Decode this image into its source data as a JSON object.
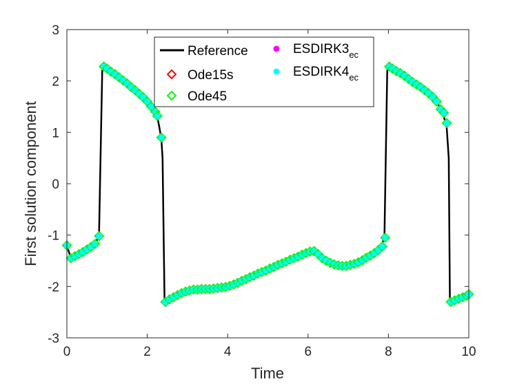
{
  "chart_data": {
    "type": "line",
    "title": "",
    "xlabel": "Time",
    "ylabel": "First solution component",
    "xlim": [
      0,
      10
    ],
    "ylim": [
      -3,
      3
    ],
    "xticks": [
      "0",
      "2",
      "4",
      "6",
      "8",
      "10"
    ],
    "yticks": [
      "-3",
      "-2",
      "-1",
      "0",
      "1",
      "2",
      "3"
    ],
    "grid": false,
    "legend_position": "top-center",
    "series": [
      {
        "name": "Reference",
        "style": "line",
        "color": "#000000",
        "points": [
          [
            0,
            -1.2
          ],
          [
            0.1,
            -1.45
          ],
          [
            0.3,
            -1.37
          ],
          [
            0.5,
            -1.28
          ],
          [
            0.7,
            -1.17
          ],
          [
            0.8,
            -1.02
          ],
          [
            0.88,
            2.2
          ],
          [
            0.92,
            2.28
          ],
          [
            1.2,
            2.13
          ],
          [
            1.5,
            1.95
          ],
          [
            1.8,
            1.75
          ],
          [
            2.0,
            1.6
          ],
          [
            2.1,
            1.5
          ],
          [
            2.2,
            1.4
          ],
          [
            2.25,
            1.3
          ],
          [
            2.3,
            1.1
          ],
          [
            2.35,
            0.88
          ],
          [
            2.38,
            0.5
          ],
          [
            2.43,
            -2.3
          ],
          [
            2.6,
            -2.22
          ],
          [
            2.8,
            -2.15
          ],
          [
            3.0,
            -2.08
          ],
          [
            3.3,
            -2.05
          ],
          [
            3.6,
            -2.05
          ],
          [
            4.0,
            -2.0
          ],
          [
            4.3,
            -1.92
          ],
          [
            4.6,
            -1.8
          ],
          [
            5.0,
            -1.67
          ],
          [
            5.5,
            -1.5
          ],
          [
            5.8,
            -1.4
          ],
          [
            6.1,
            -1.3
          ],
          [
            6.2,
            -1.33
          ],
          [
            6.4,
            -1.48
          ],
          [
            6.7,
            -1.58
          ],
          [
            7.0,
            -1.6
          ],
          [
            7.3,
            -1.53
          ],
          [
            7.6,
            -1.37
          ],
          [
            7.8,
            -1.25
          ],
          [
            7.9,
            -1.05
          ],
          [
            7.97,
            2.2
          ],
          [
            8.02,
            2.28
          ],
          [
            8.3,
            2.15
          ],
          [
            8.6,
            1.98
          ],
          [
            8.9,
            1.82
          ],
          [
            9.2,
            1.6
          ],
          [
            9.3,
            1.45
          ],
          [
            9.35,
            1.37
          ],
          [
            9.4,
            1.25
          ],
          [
            9.45,
            1.1
          ],
          [
            9.5,
            0.5
          ],
          [
            9.53,
            -2.3
          ],
          [
            9.7,
            -2.25
          ],
          [
            9.9,
            -2.2
          ],
          [
            10.0,
            -2.15
          ]
        ]
      },
      {
        "name": "Ode15s",
        "style": "marker",
        "marker": "diamond-open",
        "color": "#ff0000"
      },
      {
        "name": "Ode45",
        "style": "marker",
        "marker": "diamond-open",
        "color": "#00ff00"
      },
      {
        "name": "ESDIRK3",
        "subscript": "ec",
        "style": "marker",
        "marker": "circle-filled",
        "color": "#ff00ff"
      },
      {
        "name": "ESDIRK4",
        "subscript": "ec",
        "style": "marker",
        "marker": "circle-filled",
        "color": "#00ffff",
        "points": [
          [
            0.0,
            -1.2
          ],
          [
            0.1,
            -1.45
          ],
          [
            0.2,
            -1.41
          ],
          [
            0.3,
            -1.37
          ],
          [
            0.4,
            -1.33
          ],
          [
            0.5,
            -1.28
          ],
          [
            0.6,
            -1.23
          ],
          [
            0.7,
            -1.17
          ],
          [
            0.8,
            -1.02
          ],
          [
            0.92,
            2.28
          ],
          [
            1.0,
            2.24
          ],
          [
            1.1,
            2.18
          ],
          [
            1.2,
            2.13
          ],
          [
            1.3,
            2.07
          ],
          [
            1.4,
            2.01
          ],
          [
            1.5,
            1.95
          ],
          [
            1.6,
            1.88
          ],
          [
            1.7,
            1.82
          ],
          [
            1.8,
            1.75
          ],
          [
            1.9,
            1.68
          ],
          [
            2.0,
            1.6
          ],
          [
            2.1,
            1.5
          ],
          [
            2.2,
            1.4
          ],
          [
            2.25,
            1.32
          ],
          [
            2.35,
            0.9
          ],
          [
            2.45,
            -2.3
          ],
          [
            2.55,
            -2.25
          ],
          [
            2.65,
            -2.21
          ],
          [
            2.75,
            -2.17
          ],
          [
            2.85,
            -2.13
          ],
          [
            2.95,
            -2.1
          ],
          [
            3.05,
            -2.08
          ],
          [
            3.15,
            -2.06
          ],
          [
            3.25,
            -2.06
          ],
          [
            3.35,
            -2.05
          ],
          [
            3.45,
            -2.05
          ],
          [
            3.55,
            -2.05
          ],
          [
            3.65,
            -2.04
          ],
          [
            3.75,
            -2.03
          ],
          [
            3.85,
            -2.02
          ],
          [
            3.95,
            -2.01
          ],
          [
            4.05,
            -1.99
          ],
          [
            4.15,
            -1.96
          ],
          [
            4.25,
            -1.93
          ],
          [
            4.35,
            -1.89
          ],
          [
            4.45,
            -1.86
          ],
          [
            4.55,
            -1.82
          ],
          [
            4.65,
            -1.79
          ],
          [
            4.75,
            -1.75
          ],
          [
            4.85,
            -1.72
          ],
          [
            4.95,
            -1.69
          ],
          [
            5.05,
            -1.65
          ],
          [
            5.15,
            -1.62
          ],
          [
            5.25,
            -1.58
          ],
          [
            5.35,
            -1.55
          ],
          [
            5.45,
            -1.52
          ],
          [
            5.55,
            -1.48
          ],
          [
            5.65,
            -1.45
          ],
          [
            5.75,
            -1.42
          ],
          [
            5.85,
            -1.38
          ],
          [
            5.95,
            -1.35
          ],
          [
            6.05,
            -1.32
          ],
          [
            6.15,
            -1.31
          ],
          [
            6.25,
            -1.37
          ],
          [
            6.35,
            -1.45
          ],
          [
            6.45,
            -1.5
          ],
          [
            6.55,
            -1.54
          ],
          [
            6.65,
            -1.57
          ],
          [
            6.75,
            -1.59
          ],
          [
            6.85,
            -1.6
          ],
          [
            6.95,
            -1.6
          ],
          [
            7.05,
            -1.58
          ],
          [
            7.15,
            -1.56
          ],
          [
            7.25,
            -1.53
          ],
          [
            7.35,
            -1.49
          ],
          [
            7.45,
            -1.44
          ],
          [
            7.55,
            -1.4
          ],
          [
            7.65,
            -1.35
          ],
          [
            7.75,
            -1.29
          ],
          [
            7.85,
            -1.22
          ],
          [
            7.92,
            -1.05
          ],
          [
            8.02,
            2.28
          ],
          [
            8.1,
            2.24
          ],
          [
            8.2,
            2.19
          ],
          [
            8.3,
            2.15
          ],
          [
            8.4,
            2.1
          ],
          [
            8.5,
            2.04
          ],
          [
            8.6,
            1.98
          ],
          [
            8.7,
            1.93
          ],
          [
            8.8,
            1.88
          ],
          [
            8.9,
            1.82
          ],
          [
            9.0,
            1.76
          ],
          [
            9.1,
            1.69
          ],
          [
            9.2,
            1.6
          ],
          [
            9.3,
            1.45
          ],
          [
            9.38,
            1.38
          ],
          [
            9.45,
            1.18
          ],
          [
            9.55,
            -2.3
          ],
          [
            9.65,
            -2.27
          ],
          [
            9.75,
            -2.24
          ],
          [
            9.85,
            -2.21
          ],
          [
            9.95,
            -2.18
          ],
          [
            10.0,
            -2.15
          ]
        ]
      }
    ]
  }
}
